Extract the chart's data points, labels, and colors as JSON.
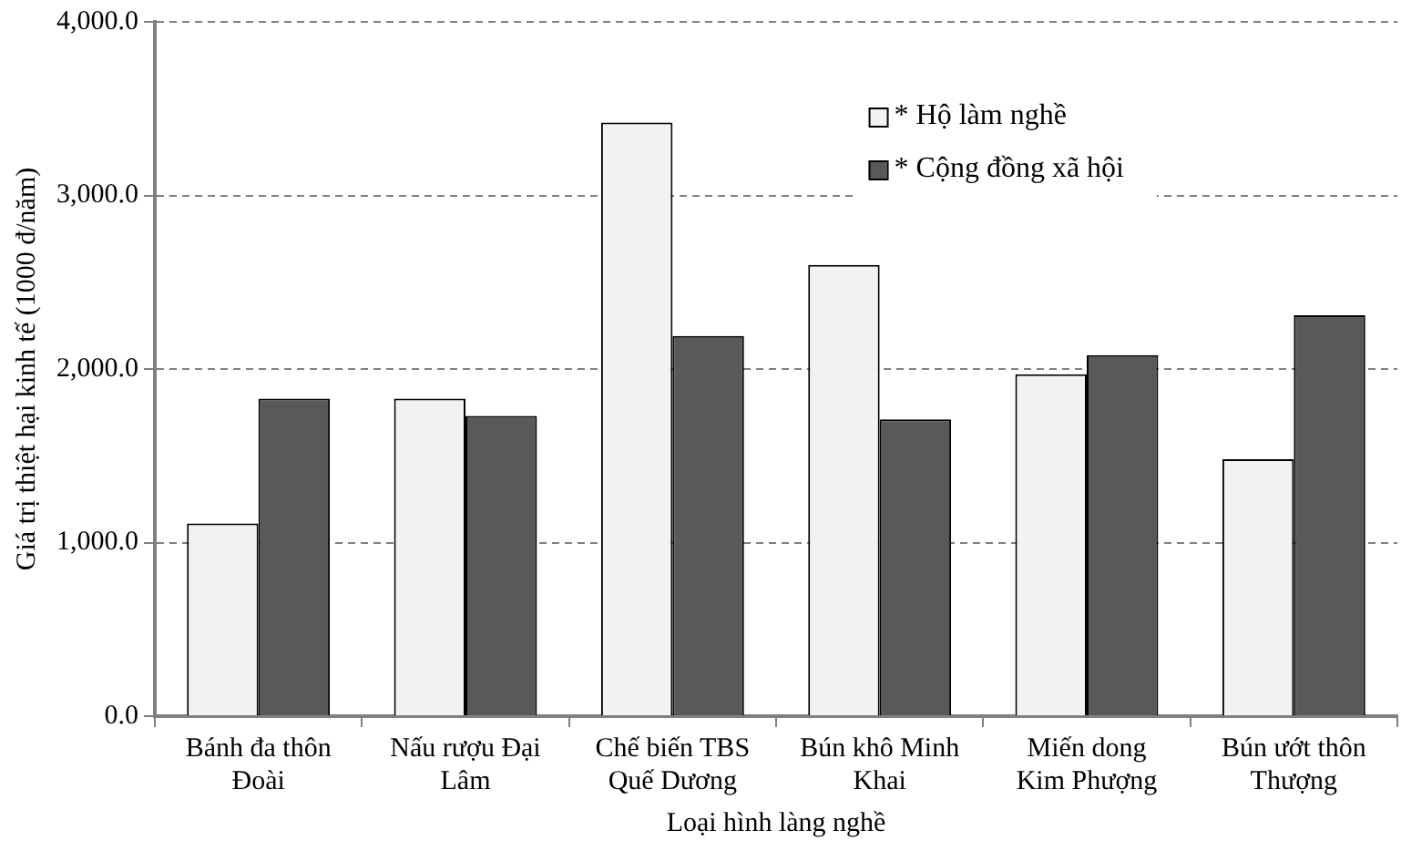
{
  "chart_data": {
    "type": "bar",
    "xlabel": "Loại hình làng nghề",
    "ylabel": "Giá trị thiệt hại kinh tế (1000 đ/năm)",
    "categories": [
      "Bánh đa thôn\nĐoài",
      "Nấu rượu Đại\nLâm",
      "Chế biến TBS\nQuế Dương",
      "Bún khô Minh\nKhai",
      "Miến dong\nKim Phượng",
      "Bún ướt thôn\nThượng"
    ],
    "series": [
      {
        "name": "* Hộ làm nghề",
        "color": "#f2f2f2",
        "values": [
          1110,
          1830,
          3420,
          2600,
          1970,
          1480
        ]
      },
      {
        "name": "* Cộng đồng xã hội",
        "color": "#595959",
        "values": [
          1830,
          1730,
          2190,
          1710,
          2080,
          2310
        ]
      }
    ],
    "ylim": [
      0,
      4000
    ],
    "yticks": [
      {
        "value": 0,
        "label": "0.0"
      },
      {
        "value": 1000,
        "label": "1,000.0"
      },
      {
        "value": 2000,
        "label": "2,000.0"
      },
      {
        "value": 3000,
        "label": "3,000.0"
      },
      {
        "value": 4000,
        "label": "4,000.0"
      }
    ],
    "grid": "y",
    "legend": "top right"
  }
}
